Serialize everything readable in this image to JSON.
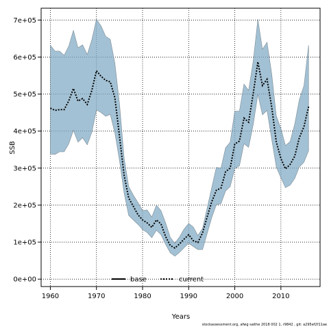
{
  "chart_data": {
    "type": "area",
    "title": "",
    "xlabel": "Years",
    "ylabel": "SSB",
    "xlim": [
      1958,
      2018.5
    ],
    "ylim": [
      -20000,
      732000
    ],
    "x_ticks": [
      1960,
      1970,
      1980,
      1990,
      2000,
      2010
    ],
    "y_ticks": [
      0,
      100000,
      200000,
      300000,
      400000,
      500000,
      600000,
      700000
    ],
    "y_tick_labels": [
      "0e+00",
      "1e+05",
      "2e+05",
      "3e+05",
      "4e+05",
      "5e+05",
      "6e+05",
      "7e+05"
    ],
    "grid": true,
    "legend_position": "bottom-center",
    "legend": [
      {
        "name": "base",
        "style": "solid",
        "color": "#000000"
      },
      {
        "name": "current",
        "style": "dotted",
        "color": "#000000"
      }
    ],
    "band_color": "#7fa9c4",
    "band_line_color": "#7a8a94",
    "x": [
      1960,
      1961,
      1962,
      1963,
      1964,
      1965,
      1966,
      1967,
      1968,
      1969,
      1970,
      1971,
      1972,
      1973,
      1974,
      1975,
      1976,
      1977,
      1978,
      1979,
      1980,
      1981,
      1982,
      1983,
      1984,
      1985,
      1986,
      1987,
      1988,
      1989,
      1990,
      1991,
      1992,
      1993,
      1994,
      1995,
      1996,
      1997,
      1998,
      1999,
      2000,
      2001,
      2002,
      2003,
      2004,
      2005,
      2006,
      2007,
      2008,
      2009,
      2010,
      2011,
      2012,
      2013,
      2014,
      2015,
      2016
    ],
    "series": [
      {
        "name": "current",
        "values": [
          462000,
          456000,
          458000,
          458000,
          482000,
          515000,
          481000,
          488000,
          472000,
          510000,
          563000,
          548000,
          537000,
          533000,
          490000,
          385000,
          280000,
          219000,
          197000,
          174000,
          160000,
          152000,
          140000,
          160000,
          149000,
          115000,
          91000,
          84000,
          95000,
          108000,
          120000,
          104000,
          99000,
          125000,
          168000,
          209000,
          240000,
          246000,
          290000,
          300000,
          365000,
          373000,
          435000,
          424000,
          502000,
          587000,
          523000,
          540000,
          465000,
          371000,
          326000,
          298000,
          310000,
          332000,
          382000,
          412000,
          466000
        ]
      }
    ],
    "upper": [
      632000,
      616000,
      616000,
      605000,
      630000,
      672000,
      625000,
      633000,
      607000,
      647000,
      702000,
      684000,
      656000,
      648000,
      583000,
      473000,
      327000,
      250000,
      227000,
      207000,
      185000,
      187000,
      168000,
      200000,
      185000,
      152000,
      113000,
      97000,
      114000,
      135000,
      151000,
      141000,
      118000,
      137000,
      192000,
      247000,
      302000,
      300000,
      355000,
      370000,
      454000,
      454000,
      527000,
      510000,
      590000,
      702000,
      621000,
      640000,
      555000,
      441000,
      407000,
      361000,
      372000,
      419000,
      485000,
      523000,
      632000
    ],
    "lower": [
      338000,
      337000,
      344000,
      344000,
      366000,
      402000,
      370000,
      382000,
      363000,
      397000,
      457000,
      450000,
      440000,
      445000,
      395000,
      320000,
      232000,
      172000,
      160000,
      148000,
      134000,
      126000,
      112000,
      132000,
      120000,
      94000,
      71000,
      62000,
      72000,
      85000,
      97000,
      88000,
      80000,
      80000,
      123000,
      166000,
      201000,
      204000,
      238000,
      250000,
      298000,
      306000,
      366000,
      356000,
      418000,
      499000,
      444000,
      456000,
      378000,
      303000,
      274000,
      247000,
      254000,
      272000,
      303000,
      316000,
      347000
    ]
  },
  "footer": {
    "text": "stockassessment.org, afwg saithe 2018 002 1, r9842 , git: a295ef2f11ae"
  }
}
